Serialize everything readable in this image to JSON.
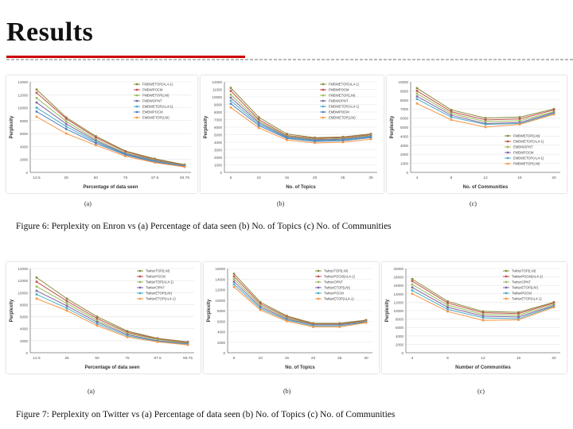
{
  "slide": {
    "title": "Results"
  },
  "figure6": {
    "caption": "Figure 6:  Perplexity on Enron vs (a) Percentage of data seen (b) No.  of Topics (c) No.  of Communities",
    "sublabels": [
      "(a)",
      "(b)",
      "(c)"
    ]
  },
  "figure7": {
    "caption": "Figure 7:  Perplexity on Twitter vs (a) Percentage of data seen (b) No.  of Topics (c) No.  of Communities",
    "sublabels": [
      "(a)",
      "(b)",
      "(c)"
    ]
  },
  "chart_data": [
    {
      "type": "line",
      "id": "enron-a",
      "xlabel": "Percentage of data seen",
      "ylabel": "Perplexity",
      "x": [
        12.5,
        25,
        50,
        75,
        87.5,
        93.75
      ],
      "ylim": [
        0,
        14000
      ],
      "yticks": [
        0,
        2000,
        4000,
        6000,
        8000,
        10000,
        12000,
        14000
      ],
      "legend_position": "top-right",
      "series": [
        {
          "name": "FMBWETOP(AL4-1)",
          "color": "#8b8b3d",
          "values": [
            12800,
            8500,
            5600,
            3300,
            2100,
            1200
          ]
        },
        {
          "name": "FMBWPOCM",
          "color": "#c0504d",
          "values": [
            12300,
            8300,
            5400,
            3200,
            2000,
            1100
          ]
        },
        {
          "name": "FMBWETOP(LNI)",
          "color": "#9bbb59",
          "values": [
            11500,
            7900,
            5100,
            3000,
            1900,
            1050
          ]
        },
        {
          "name": "FMBWOPNT",
          "color": "#8064a2",
          "values": [
            10800,
            7500,
            4900,
            2900,
            1800,
            1000
          ]
        },
        {
          "name": "EMBWETOP(AL4-1)",
          "color": "#4bacc6",
          "values": [
            10000,
            7100,
            4700,
            2800,
            1700,
            950
          ]
        },
        {
          "name": "EMBWPOCM",
          "color": "#4f81bd",
          "values": [
            9400,
            6700,
            4500,
            2700,
            1600,
            900
          ]
        },
        {
          "name": "EMBWETOP(LNI)",
          "color": "#f79646",
          "values": [
            8600,
            6000,
            4200,
            2500,
            1500,
            850
          ]
        }
      ]
    },
    {
      "type": "line",
      "id": "enron-b",
      "xlabel": "No. of Topics",
      "ylabel": "Perplexity",
      "x": [
        5,
        10,
        15,
        20,
        25,
        30
      ],
      "ylim": [
        0,
        12000
      ],
      "yticks": [
        0,
        1000,
        2000,
        3000,
        4000,
        5000,
        6000,
        7000,
        8000,
        9000,
        10000,
        11000,
        12000
      ],
      "legend_position": "top-right",
      "series": [
        {
          "name": "FMBWETOP(AL4-1)",
          "color": "#8b8b3d",
          "values": [
            11200,
            7300,
            5100,
            4600,
            4700,
            5100
          ]
        },
        {
          "name": "FMBWPOCM",
          "color": "#c0504d",
          "values": [
            10800,
            7000,
            4900,
            4500,
            4600,
            5000
          ]
        },
        {
          "name": "FMBWETOP(LNI)",
          "color": "#9bbb59",
          "values": [
            10300,
            6800,
            4800,
            4400,
            4500,
            4900
          ]
        },
        {
          "name": "FMBWOPNT",
          "color": "#8064a2",
          "values": [
            9900,
            6600,
            4700,
            4300,
            4400,
            4800
          ]
        },
        {
          "name": "EMBWETOP(AL4-1)",
          "color": "#4bacc6",
          "values": [
            9500,
            6400,
            4600,
            4200,
            4300,
            4700
          ]
        },
        {
          "name": "EMBWPOCM",
          "color": "#4f81bd",
          "values": [
            9100,
            6200,
            4500,
            4100,
            4200,
            4600
          ]
        },
        {
          "name": "EMBWETOP(LNI)",
          "color": "#f79646",
          "values": [
            8600,
            5900,
            4300,
            3900,
            4000,
            4400
          ]
        }
      ]
    },
    {
      "type": "line",
      "id": "enron-c",
      "xlabel": "No. of Communities",
      "ylabel": "Perplexity",
      "x": [
        4,
        8,
        12,
        16,
        20
      ],
      "ylim": [
        0,
        10000
      ],
      "yticks": [
        0,
        1000,
        2000,
        3000,
        4000,
        5000,
        6000,
        7000,
        8000,
        9000,
        10000
      ],
      "legend_position": "bottom-right",
      "series": [
        {
          "name": "FMBWETOP(LNI)",
          "color": "#8b8b3d",
          "values": [
            9300,
            6900,
            6000,
            6100,
            7000
          ]
        },
        {
          "name": "EMBWETOP(AL4-1)",
          "color": "#c0504d",
          "values": [
            9000,
            6700,
            5800,
            5900,
            6900
          ]
        },
        {
          "name": "EMBWOPNT",
          "color": "#9bbb59",
          "values": [
            8700,
            6500,
            5600,
            5700,
            6700
          ]
        },
        {
          "name": "FMBWPOCM",
          "color": "#8064a2",
          "values": [
            8400,
            6300,
            5400,
            5500,
            6600
          ]
        },
        {
          "name": "EMBWETOP(AL4-1)",
          "color": "#4bacc6",
          "values": [
            8100,
            6100,
            5300,
            5400,
            6500
          ]
        },
        {
          "name": "FMBWETOP(LNI)",
          "color": "#f79646",
          "values": [
            7600,
            5800,
            5000,
            5300,
            6400
          ]
        }
      ]
    },
    {
      "type": "line",
      "id": "twitter-a",
      "xlabel": "Percentage of data seen",
      "ylabel": "Perplexity",
      "x": [
        12.5,
        25,
        50,
        75,
        87.5,
        93.75
      ],
      "ylim": [
        0,
        14000
      ],
      "yticks": [
        0,
        2000,
        4000,
        6000,
        8000,
        10000,
        12000,
        14000
      ],
      "legend_position": "top-right",
      "series": [
        {
          "name": "TwitterTOP(LNI)",
          "color": "#8b8b3d",
          "values": [
            12500,
            9000,
            6000,
            3600,
            2400,
            1800
          ]
        },
        {
          "name": "TwitterPOCM",
          "color": "#c0504d",
          "values": [
            11800,
            8600,
            5700,
            3400,
            2300,
            1700
          ]
        },
        {
          "name": "TwitterTOP(AL4-1)",
          "color": "#9bbb59",
          "values": [
            11000,
            8200,
            5400,
            3200,
            2200,
            1600
          ]
        },
        {
          "name": "TwitterOPNT",
          "color": "#8064a2",
          "values": [
            10300,
            7800,
            5100,
            3000,
            2000,
            1500
          ]
        },
        {
          "name": "TwitterETOP(LNI)",
          "color": "#4bacc6",
          "values": [
            9700,
            7400,
            4800,
            2800,
            1900,
            1400
          ]
        },
        {
          "name": "TwitterETOP(AL4-1)",
          "color": "#f79646",
          "values": [
            9000,
            7000,
            4500,
            2600,
            1800,
            1300
          ]
        }
      ]
    },
    {
      "type": "line",
      "id": "twitter-b",
      "xlabel": "No. of Topics",
      "ylabel": "Perplexity",
      "x": [
        5,
        10,
        15,
        20,
        25,
        30
      ],
      "ylim": [
        0,
        16000
      ],
      "yticks": [
        0,
        2000,
        4000,
        6000,
        8000,
        10000,
        12000,
        14000,
        16000
      ],
      "legend_position": "top-right",
      "series": [
        {
          "name": "TwitterTOP(LNI)",
          "color": "#8b8b3d",
          "values": [
            15000,
            9600,
            7000,
            5600,
            5600,
            6200
          ]
        },
        {
          "name": "TwitterPOCM(AL4-1)",
          "color": "#c0504d",
          "values": [
            14500,
            9300,
            6800,
            5500,
            5500,
            6100
          ]
        },
        {
          "name": "TwitterOPNT",
          "color": "#9bbb59",
          "values": [
            14000,
            9000,
            6600,
            5400,
            5400,
            6000
          ]
        },
        {
          "name": "TwitterETOP(LNI)",
          "color": "#8064a2",
          "values": [
            13500,
            8700,
            6400,
            5300,
            5300,
            5900
          ]
        },
        {
          "name": "TwitterPOCM",
          "color": "#4bacc6",
          "values": [
            13000,
            8400,
            6200,
            5100,
            5100,
            5800
          ]
        },
        {
          "name": "TwitterETOP(AL4-1)",
          "color": "#f79646",
          "values": [
            12500,
            8100,
            6000,
            4900,
            4900,
            5700
          ]
        }
      ]
    },
    {
      "type": "line",
      "id": "twitter-c",
      "xlabel": "Number of Communities",
      "ylabel": "Perplexity",
      "x": [
        4,
        8,
        12,
        16,
        20
      ],
      "ylim": [
        0,
        20000
      ],
      "yticks": [
        0,
        2000,
        4000,
        6000,
        8000,
        10000,
        12000,
        14000,
        16000,
        18000,
        20000
      ],
      "legend_position": "top-right",
      "series": [
        {
          "name": "TwitterTOP(LNI)",
          "color": "#8b8b3d",
          "values": [
            17500,
            12200,
            9800,
            9600,
            12000
          ]
        },
        {
          "name": "TwitterPOCM(AL4-1)",
          "color": "#c0504d",
          "values": [
            17000,
            11800,
            9500,
            9300,
            11800
          ]
        },
        {
          "name": "TwitterOPNT",
          "color": "#9bbb59",
          "values": [
            16200,
            11300,
            9100,
            8900,
            11500
          ]
        },
        {
          "name": "TwitterETOP(LNI)",
          "color": "#8064a2",
          "values": [
            15500,
            10800,
            8700,
            8500,
            11200
          ]
        },
        {
          "name": "TwitterPOCM",
          "color": "#4bacc6",
          "values": [
            14800,
            10300,
            8300,
            8100,
            11000
          ]
        },
        {
          "name": "TwitterETOP(AL4-1)",
          "color": "#f79646",
          "values": [
            14000,
            9800,
            7700,
            7800,
            10800
          ]
        }
      ]
    }
  ]
}
